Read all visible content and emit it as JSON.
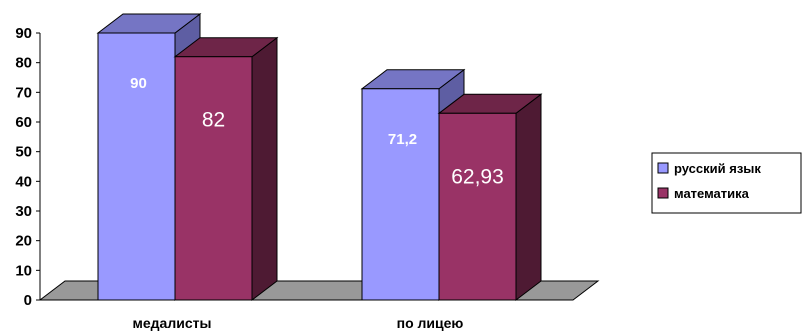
{
  "chart_data": {
    "type": "bar",
    "categories": [
      "медалисты",
      "по лицею"
    ],
    "series": [
      {
        "name": "русский язык",
        "values": [
          90,
          71.2
        ],
        "labels": [
          "90",
          "71,2"
        ],
        "color_front": "#9999FF",
        "color_side": "#5E5EA3",
        "color_top": "#7575C4"
      },
      {
        "name": "математика",
        "values": [
          82,
          62.93
        ],
        "labels": [
          "82",
          "62,93"
        ],
        "color_front": "#993366",
        "color_side": "#4E1A33",
        "color_top": "#6E2548"
      }
    ],
    "ylim": [
      0,
      90
    ],
    "yticks": [
      "0",
      "10",
      "20",
      "30",
      "40",
      "50",
      "60",
      "70",
      "80",
      "90"
    ],
    "floor_color": "#999999",
    "legend_position": "right"
  }
}
